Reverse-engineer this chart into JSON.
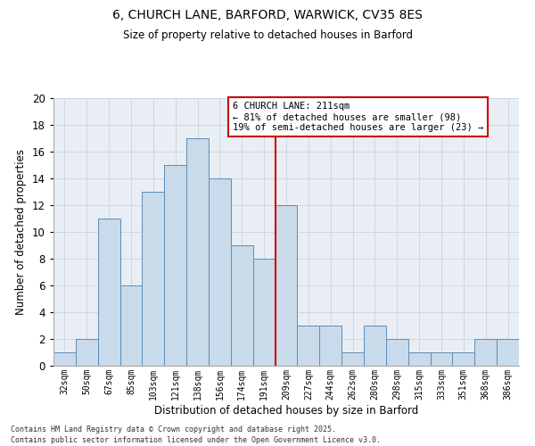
{
  "title_line1": "6, CHURCH LANE, BARFORD, WARWICK, CV35 8ES",
  "title_line2": "Size of property relative to detached houses in Barford",
  "xlabel": "Distribution of detached houses by size in Barford",
  "ylabel": "Number of detached properties",
  "categories": [
    "32sqm",
    "50sqm",
    "67sqm",
    "85sqm",
    "103sqm",
    "121sqm",
    "138sqm",
    "156sqm",
    "174sqm",
    "191sqm",
    "209sqm",
    "227sqm",
    "244sqm",
    "262sqm",
    "280sqm",
    "298sqm",
    "315sqm",
    "333sqm",
    "351sqm",
    "368sqm",
    "386sqm"
  ],
  "values": [
    1,
    2,
    11,
    6,
    13,
    15,
    17,
    14,
    9,
    8,
    12,
    3,
    3,
    1,
    3,
    2,
    1,
    1,
    1,
    2,
    2
  ],
  "bar_color": "#c9daea",
  "bar_edge_color": "#5b8db8",
  "grid_color": "#c8d4e0",
  "bg_color": "#e8eef4",
  "vline_color": "#cc0000",
  "annotation_text": "6 CHURCH LANE: 211sqm\n← 81% of detached houses are smaller (98)\n19% of semi-detached houses are larger (23) →",
  "annotation_box_color": "#cc0000",
  "footer_text": "Contains HM Land Registry data © Crown copyright and database right 2025.\nContains public sector information licensed under the Open Government Licence v3.0.",
  "ylim": [
    0,
    20
  ],
  "yticks": [
    0,
    2,
    4,
    6,
    8,
    10,
    12,
    14,
    16,
    18,
    20
  ],
  "vline_index": 10
}
